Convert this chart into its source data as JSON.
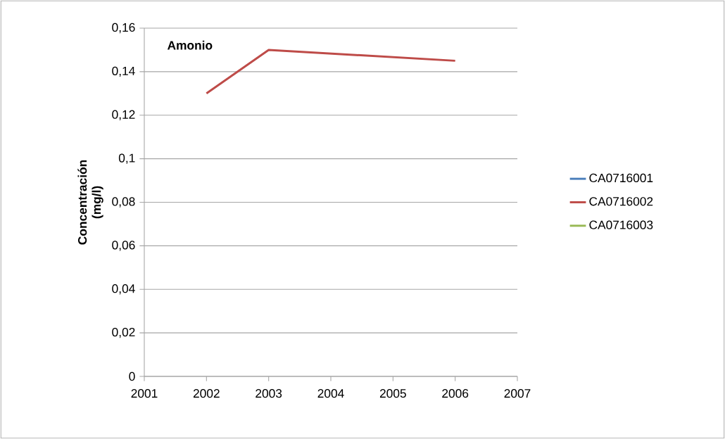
{
  "chart_data": {
    "type": "line",
    "title": "Amonio",
    "ylabel": "Concentración (mg/l)",
    "series": [
      {
        "name": "CA0716001",
        "color": "#4a7ebb"
      },
      {
        "name": "CA0716002",
        "color": "#be4b48",
        "x": [
          2002,
          2003,
          2006
        ],
        "values": [
          0.13,
          0.15,
          0.145
        ]
      },
      {
        "name": "CA0716003",
        "color": "#98b954"
      }
    ],
    "xlim": [
      2001,
      2007
    ],
    "xticks": [
      2001,
      2002,
      2003,
      2004,
      2005,
      2006,
      2007
    ],
    "ylim": [
      0,
      0.16
    ],
    "yticks": [
      0,
      {
        "value": 0.02,
        "label": "0,02"
      },
      {
        "value": 0.04,
        "label": "0,04"
      },
      {
        "value": 0.06,
        "label": "0,06"
      },
      {
        "value": 0.08,
        "label": "0,08"
      },
      {
        "value": 0.1,
        "label": "0,1"
      },
      {
        "value": 0.12,
        "label": "0,12"
      },
      {
        "value": 0.14,
        "label": "0,14"
      },
      {
        "value": 0.16,
        "label": "0,16"
      }
    ],
    "grid": "y",
    "legend": "right",
    "marker": "none",
    "line_style": "solid"
  }
}
